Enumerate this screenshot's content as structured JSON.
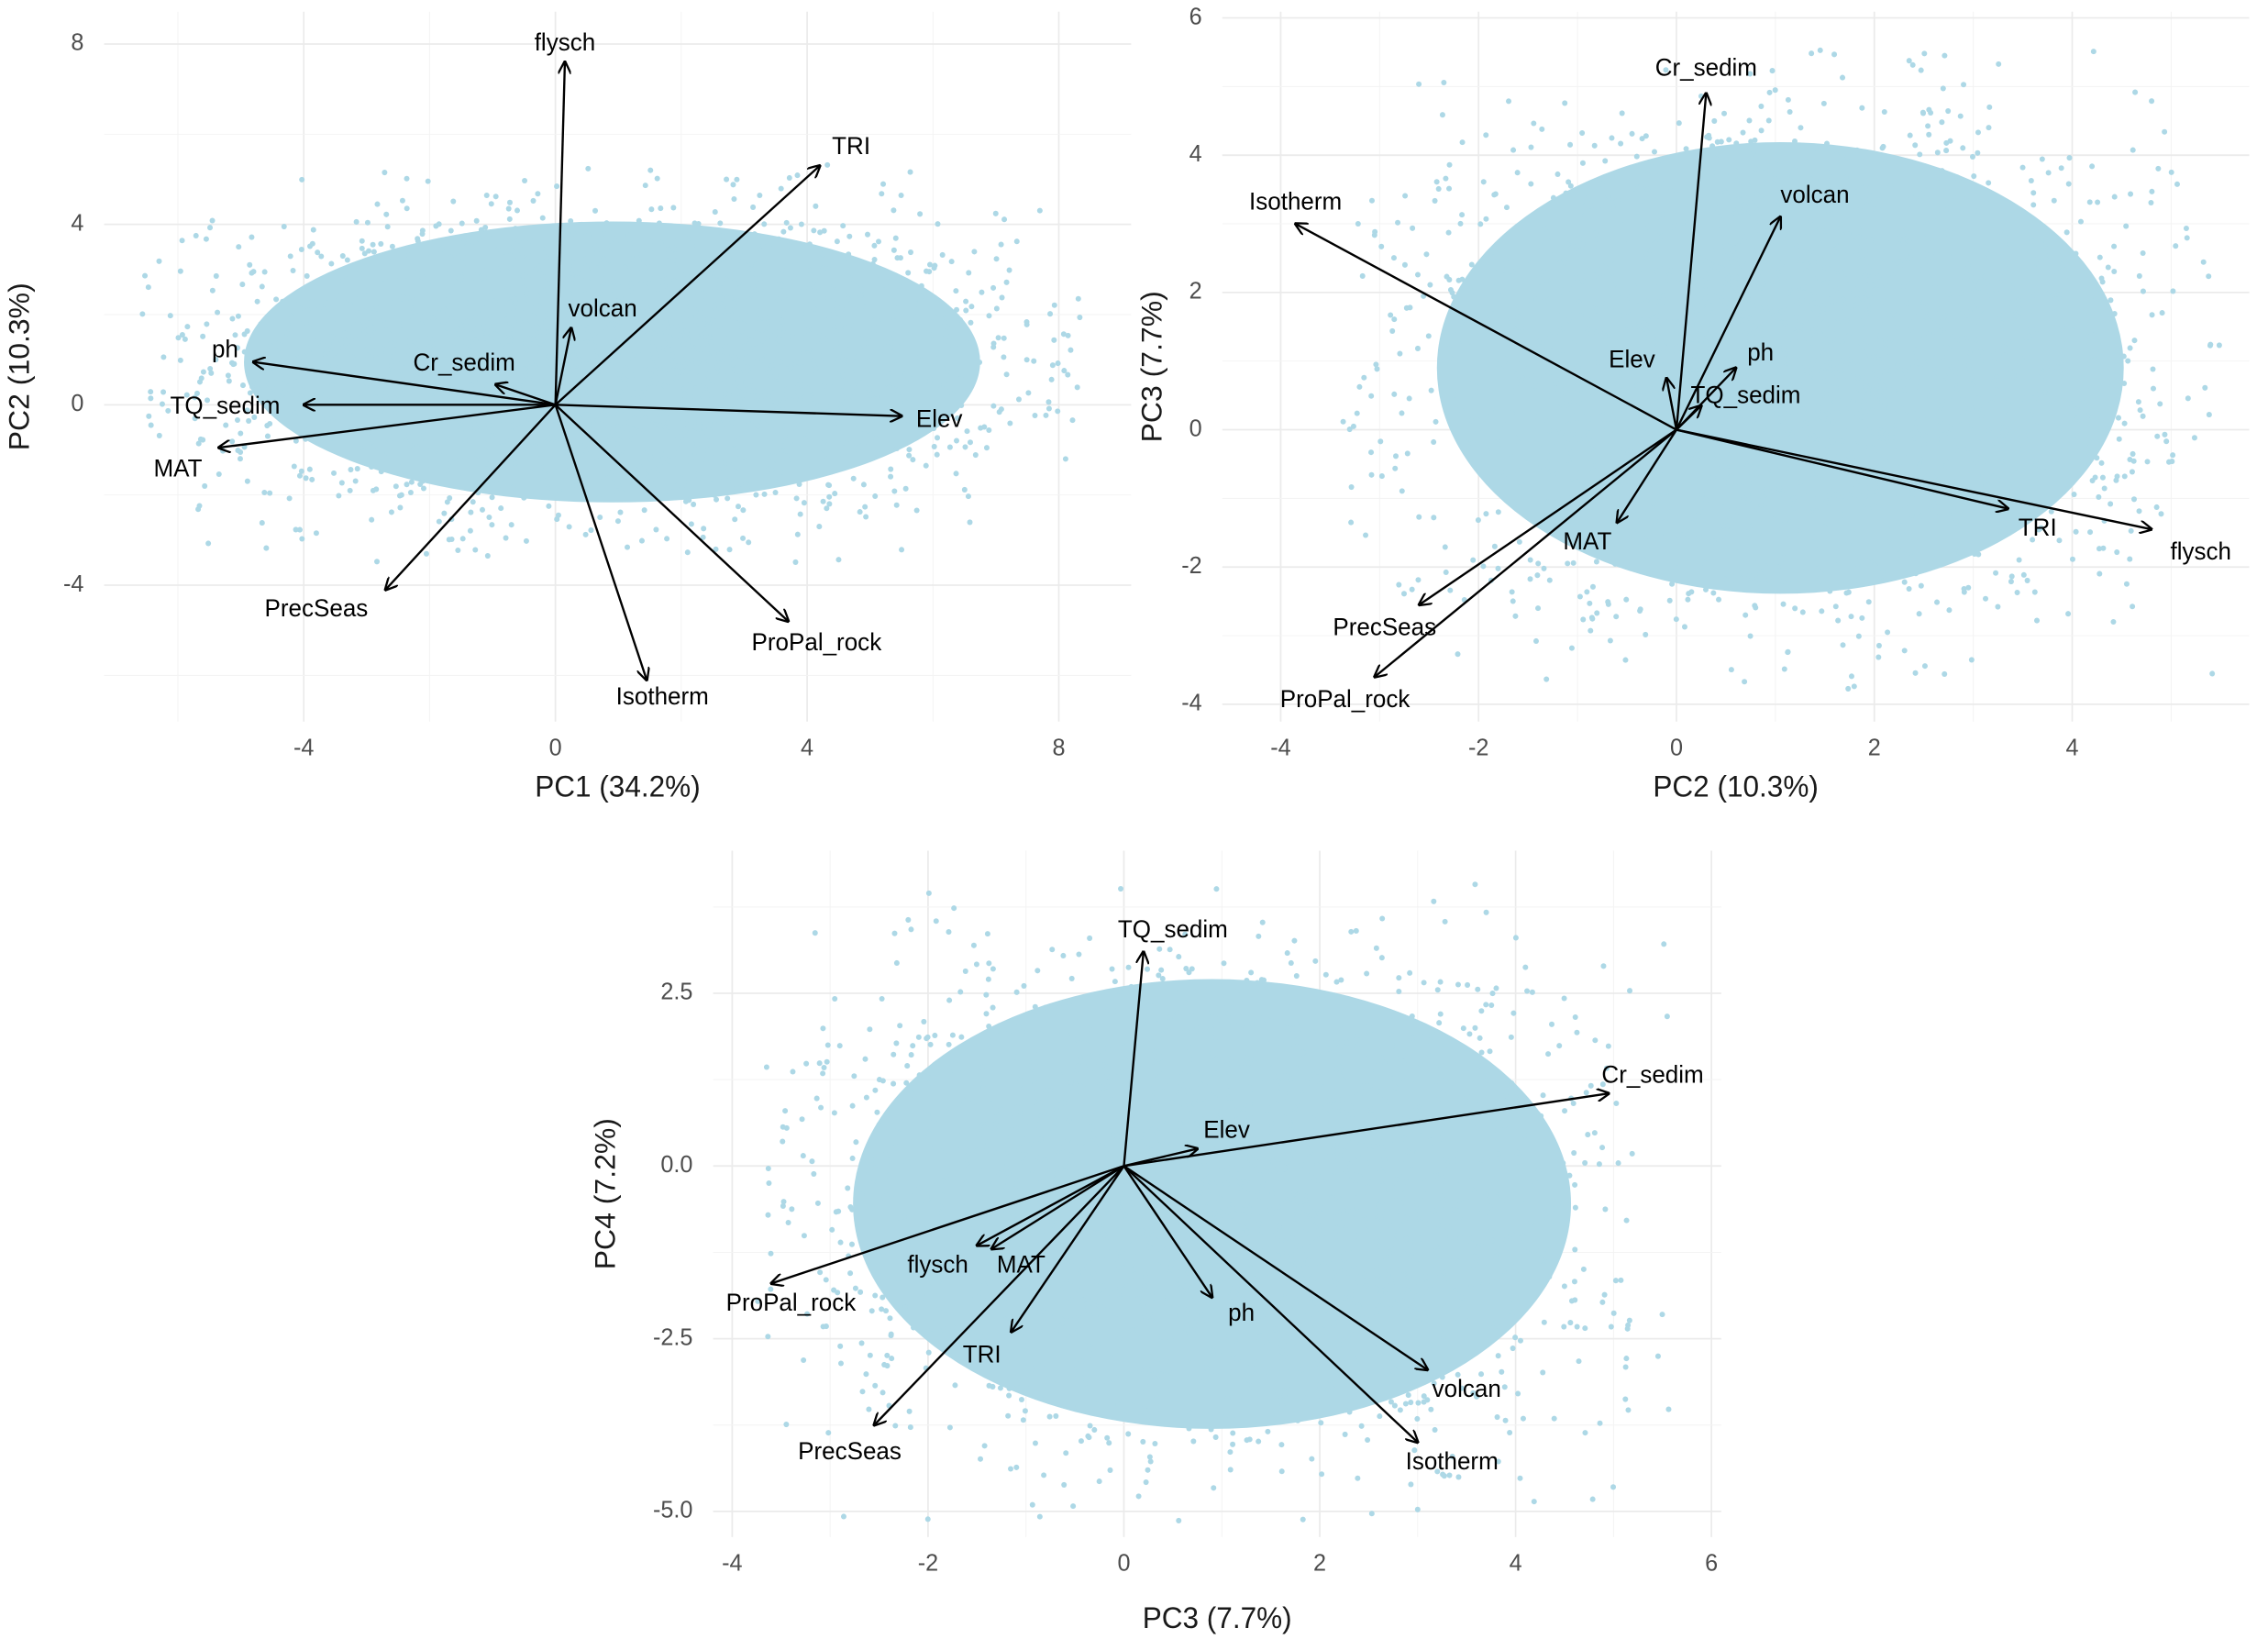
{
  "figure": {
    "point_color": "#add8e6",
    "arrow_color": "#000000",
    "background": "#ffffff"
  },
  "chart_data": [
    {
      "type": "scatter",
      "title": "",
      "xlabel": "PC1 (34.2%)",
      "ylabel": "PC2 (10.3%)",
      "xlim": [
        -6.5,
        9.2
      ],
      "ylim": [
        -6.0,
        8.3
      ],
      "x_ticks": [
        -4,
        0,
        4,
        8
      ],
      "y_ticks": [
        -4,
        0,
        4,
        8
      ],
      "grid": true,
      "legend": "none",
      "point_cloud": {
        "x_range": [
          -6.6,
          8.4
        ],
        "y_range": [
          -3.5,
          5.4
        ],
        "description": "dense light-blue scatter of PCA scores"
      },
      "loadings": [
        {
          "name": "flysch",
          "x": 0.15,
          "y": 7.6,
          "label_x": 0.15,
          "label_y": 8.0
        },
        {
          "name": "TRI",
          "x": 4.2,
          "y": 5.3,
          "label_x": 4.7,
          "label_y": 5.7
        },
        {
          "name": "volcan",
          "x": 0.25,
          "y": 1.7,
          "label_x": 0.75,
          "label_y": 2.1
        },
        {
          "name": "Cr_sedim",
          "x": -0.95,
          "y": 0.45,
          "label_x": -1.45,
          "label_y": 0.9
        },
        {
          "name": "ph",
          "x": -4.8,
          "y": 0.95,
          "label_x": -5.25,
          "label_y": 1.2
        },
        {
          "name": "TQ_sedim",
          "x": -4.0,
          "y": 0.0,
          "label_x": -5.25,
          "label_y": -0.05
        },
        {
          "name": "MAT",
          "x": -5.35,
          "y": -0.95,
          "label_x": -6.0,
          "label_y": -1.45
        },
        {
          "name": "Elev",
          "x": 5.5,
          "y": -0.25,
          "label_x": 6.1,
          "label_y": -0.35
        },
        {
          "name": "PrecSeas",
          "x": -2.7,
          "y": -4.1,
          "label_x": -3.8,
          "label_y": -4.55
        },
        {
          "name": "Isotherm",
          "x": 1.45,
          "y": -6.1,
          "label_x": 1.7,
          "label_y": -6.5
        },
        {
          "name": "ProPal_rock",
          "x": 3.7,
          "y": -4.8,
          "label_x": 4.15,
          "label_y": -5.3
        }
      ]
    },
    {
      "type": "scatter",
      "title": "",
      "xlabel": "PC2 (10.3%)",
      "ylabel": "PC3 (7.7%)",
      "xlim": [
        -4.6,
        5.8
      ],
      "ylim": [
        -4.2,
        6.1
      ],
      "x_ticks": [
        -4,
        -2,
        0,
        2,
        4
      ],
      "y_ticks": [
        -4,
        -2,
        0,
        2,
        4,
        6
      ],
      "grid": true,
      "legend": "none",
      "point_cloud": {
        "x_range": [
          -3.4,
          5.5
        ],
        "y_range": [
          -3.8,
          5.6
        ],
        "description": "dense light-blue scatter of PCA scores"
      },
      "loadings": [
        {
          "name": "Cr_sedim",
          "x": 0.3,
          "y": 4.9,
          "label_x": 0.3,
          "label_y": 5.25
        },
        {
          "name": "volcan",
          "x": 1.05,
          "y": 3.1,
          "label_x": 1.4,
          "label_y": 3.4
        },
        {
          "name": "Isotherm",
          "x": -3.85,
          "y": 3.0,
          "label_x": -3.85,
          "label_y": 3.3
        },
        {
          "name": "Elev",
          "x": -0.1,
          "y": 0.75,
          "label_x": -0.45,
          "label_y": 1.0
        },
        {
          "name": "ph",
          "x": 0.6,
          "y": 0.9,
          "label_x": 0.85,
          "label_y": 1.1
        },
        {
          "name": "TQ_sedim",
          "x": 0.25,
          "y": 0.35,
          "label_x": 0.7,
          "label_y": 0.48
        },
        {
          "name": "MAT",
          "x": -0.6,
          "y": -1.35,
          "label_x": -0.9,
          "label_y": -1.65
        },
        {
          "name": "TRI",
          "x": 3.35,
          "y": -1.15,
          "label_x": 3.65,
          "label_y": -1.45
        },
        {
          "name": "flysch",
          "x": 4.8,
          "y": -1.45,
          "label_x": 5.3,
          "label_y": -1.8
        },
        {
          "name": "PrecSeas",
          "x": -2.6,
          "y": -2.55,
          "label_x": -2.95,
          "label_y": -2.9
        },
        {
          "name": "ProPal_rock",
          "x": -3.05,
          "y": -3.6,
          "label_x": -3.35,
          "label_y": -3.95
        }
      ]
    },
    {
      "type": "scatter",
      "title": "",
      "xlabel": "PC3 (7.7%)",
      "ylabel": "PC4 (7.2%)",
      "xlim": [
        -4.2,
        6.1
      ],
      "ylim": [
        -5.3,
        4.1
      ],
      "x_ticks": [
        -4,
        -2,
        0,
        2,
        4,
        6
      ],
      "y_ticks": [
        -5.0,
        -2.5,
        0.0,
        2.5
      ],
      "y_tick_labels": [
        "-5.0",
        "-2.5",
        "0.0",
        "2.5"
      ],
      "grid": true,
      "legend": "none",
      "point_cloud": {
        "x_range": [
          -3.8,
          5.6
        ],
        "y_range": [
          -5.2,
          4.1
        ],
        "description": "dense light-blue scatter of PCA scores"
      },
      "loadings": [
        {
          "name": "TQ_sedim",
          "x": 0.2,
          "y": 3.1,
          "label_x": 0.5,
          "label_y": 3.4
        },
        {
          "name": "Cr_sedim",
          "x": 4.95,
          "y": 1.05,
          "label_x": 5.4,
          "label_y": 1.3
        },
        {
          "name": "Elev",
          "x": 0.75,
          "y": 0.25,
          "label_x": 1.05,
          "label_y": 0.5
        },
        {
          "name": "ProPal_rock",
          "x": -3.6,
          "y": -1.7,
          "label_x": -3.4,
          "label_y": -2.0
        },
        {
          "name": "flysch",
          "x": -1.5,
          "y": -1.15,
          "label_x": -1.9,
          "label_y": -1.45
        },
        {
          "name": "MAT",
          "x": -1.35,
          "y": -1.2,
          "label_x": -1.05,
          "label_y": -1.45
        },
        {
          "name": "TRI",
          "x": -1.15,
          "y": -2.4,
          "label_x": -1.45,
          "label_y": -2.75
        },
        {
          "name": "ph",
          "x": 0.9,
          "y": -1.9,
          "label_x": 1.2,
          "label_y": -2.15
        },
        {
          "name": "PrecSeas",
          "x": -2.55,
          "y": -3.75,
          "label_x": -2.8,
          "label_y": -4.15
        },
        {
          "name": "volcan",
          "x": 3.1,
          "y": -2.95,
          "label_x": 3.5,
          "label_y": -3.25
        },
        {
          "name": "Isotherm",
          "x": 3.0,
          "y": -4.0,
          "label_x": 3.35,
          "label_y": -4.3
        }
      ]
    }
  ]
}
